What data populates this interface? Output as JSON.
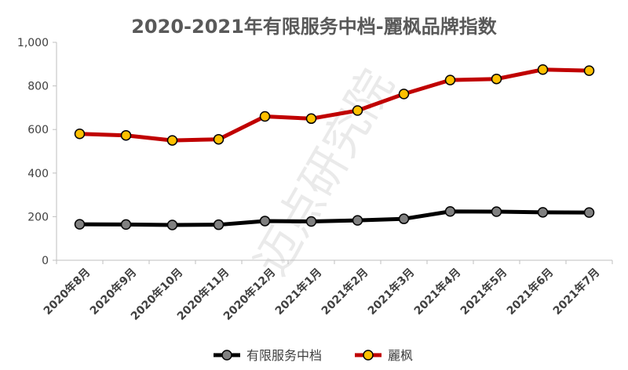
{
  "chart_data": {
    "type": "line",
    "title": "2020-2021年有限服务中档-麗枫品牌指数",
    "watermark": "迈点研究院",
    "categories": [
      "2020年8月",
      "2020年9月",
      "2020年10月",
      "2020年11月",
      "2020年12月",
      "2021年1月",
      "2021年2月",
      "2021年3月",
      "2021年4月",
      "2021年5月",
      "2021年6月",
      "2021年7月"
    ],
    "ylim": [
      0,
      1000
    ],
    "yticks": [
      "0",
      "200",
      "400",
      "600",
      "800",
      "1,000"
    ],
    "legend_position": "bottom",
    "series": [
      {
        "name": "有限服务中档",
        "color": "#000000",
        "marker_fill": "#808080",
        "values": [
          165,
          164,
          162,
          163,
          180,
          178,
          183,
          190,
          224,
          223,
          220,
          219
        ]
      },
      {
        "name": "麗枫",
        "color": "#c00000",
        "marker_fill": "#ffc000",
        "values": [
          580,
          573,
          550,
          555,
          660,
          650,
          687,
          763,
          827,
          832,
          875,
          870
        ]
      }
    ]
  }
}
